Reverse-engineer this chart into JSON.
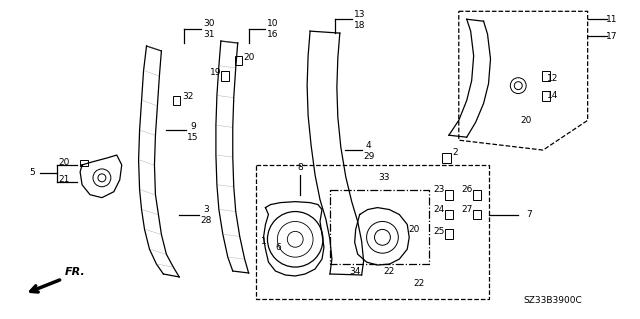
{
  "bg_color": "#ffffff",
  "fig_width": 6.4,
  "fig_height": 3.19,
  "dpi": 100,
  "diagram_id": "SZ33B3900C"
}
